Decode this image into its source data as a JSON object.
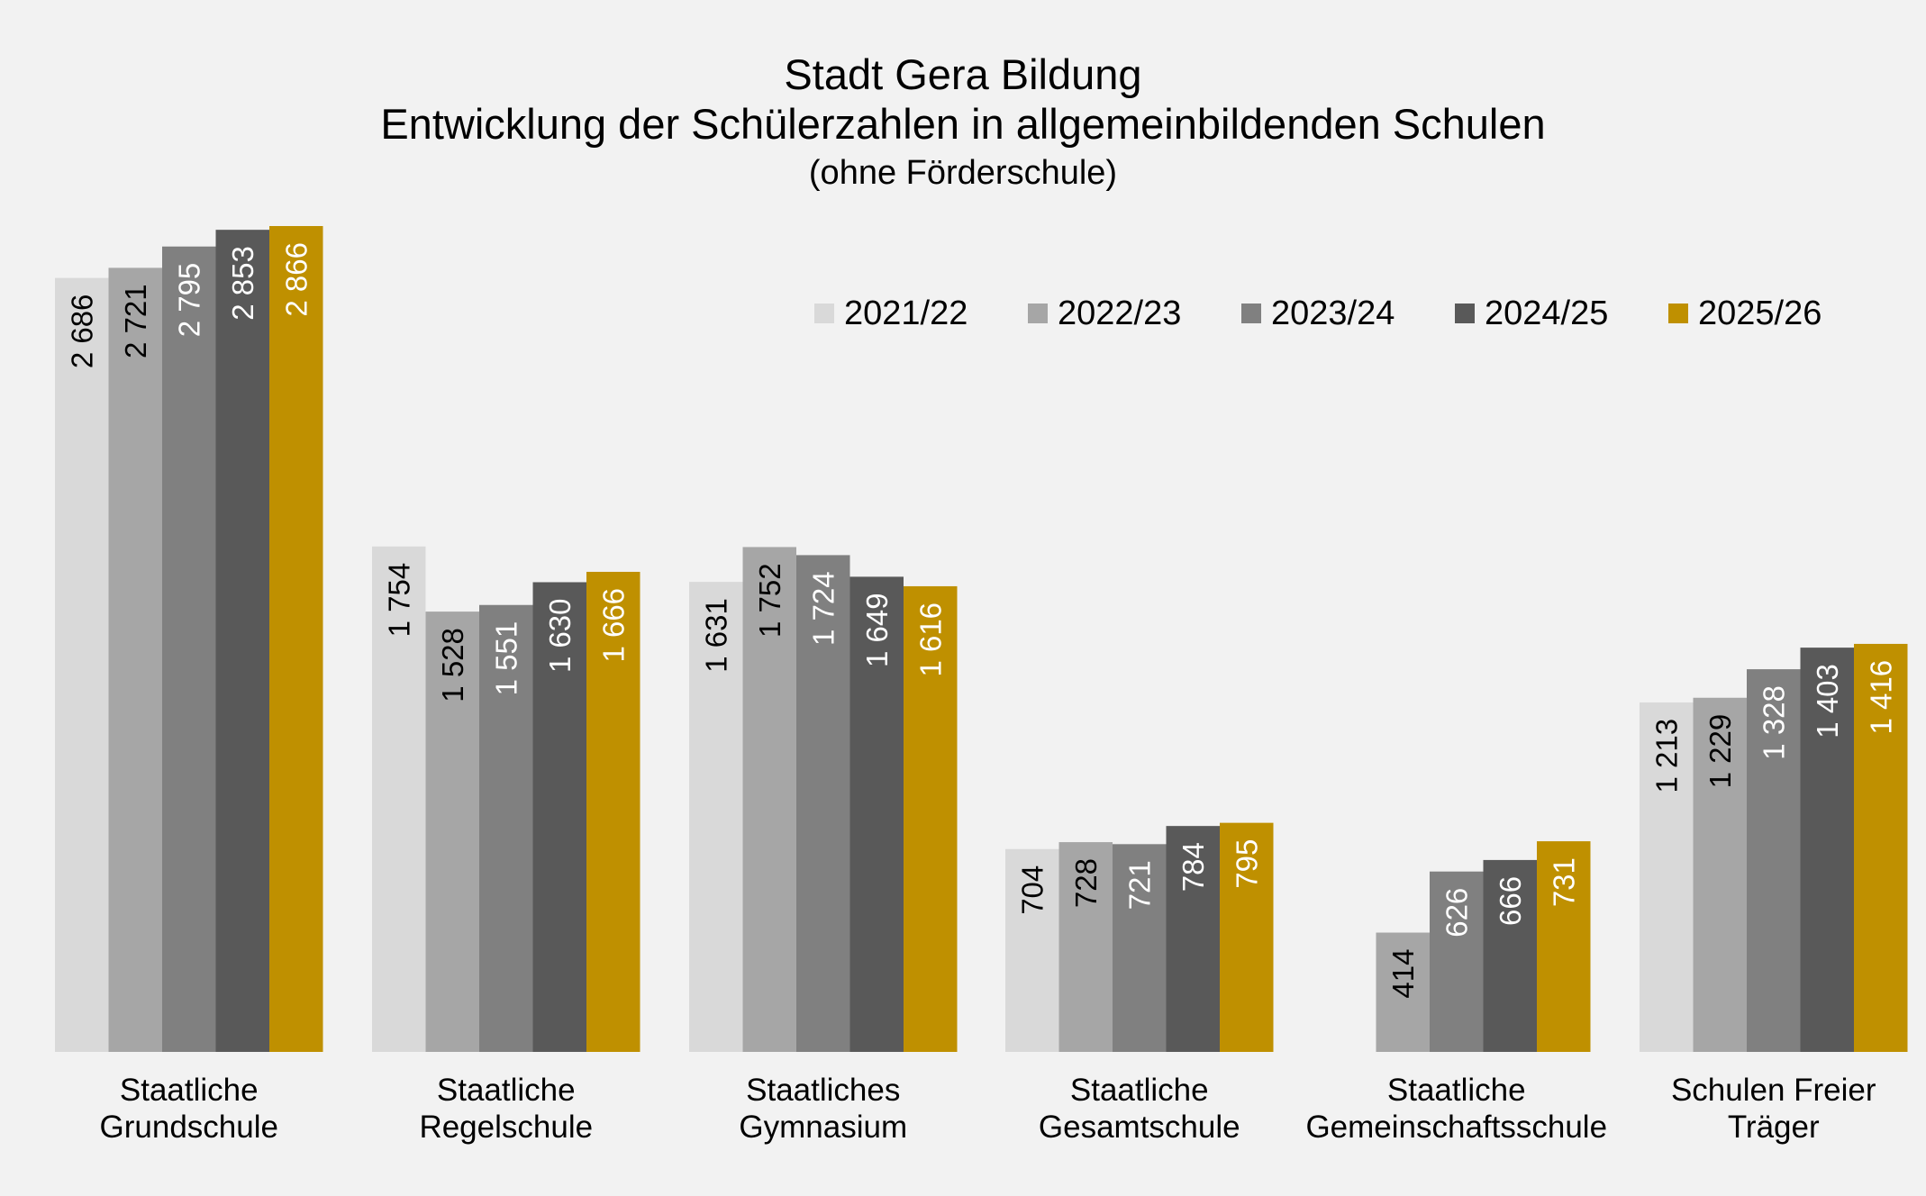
{
  "chart_data": {
    "type": "bar",
    "title": "Stadt Gera Bildung",
    "subtitle": "Entwicklung der Schülerzahlen in allgemeinbildenden Schulen",
    "subtitle2": "(ohne Förderschule)",
    "xlabel": "",
    "ylabel": "",
    "ylim": [
      0,
      2866
    ],
    "grid": false,
    "legend_position": "top-right",
    "categories": [
      [
        "Staatliche",
        "Grundschule"
      ],
      [
        "Staatliche",
        "Regelschule"
      ],
      [
        "Staatliches",
        "Gymnasium"
      ],
      [
        "Staatliche",
        "Gesamtschule"
      ],
      [
        "Staatliche",
        "Gemeinschaftsschule"
      ],
      [
        "Schulen Freier",
        "Träger"
      ]
    ],
    "series": [
      {
        "name": "2021/22",
        "color": "#d9d9d9",
        "label_color": "#000000",
        "values": [
          2686,
          1754,
          1631,
          704,
          null,
          1213
        ]
      },
      {
        "name": "2022/23",
        "color": "#a6a6a6",
        "label_color": "#000000",
        "values": [
          2721,
          1528,
          1752,
          728,
          414,
          1229
        ]
      },
      {
        "name": "2023/24",
        "color": "#808080",
        "label_color": "#ffffff",
        "values": [
          2795,
          1551,
          1724,
          721,
          626,
          1328
        ]
      },
      {
        "name": "2024/25",
        "color": "#595959",
        "label_color": "#ffffff",
        "values": [
          2853,
          1630,
          1649,
          784,
          666,
          1403
        ]
      },
      {
        "name": "2025/26",
        "color": "#bf9000",
        "label_color": "#ffffff",
        "values": [
          2866,
          1666,
          1616,
          795,
          731,
          1416
        ]
      }
    ],
    "value_labels": [
      [
        "2 686",
        "1 754",
        "1 631",
        "704",
        "",
        "1 213"
      ],
      [
        "2 721",
        "1 528",
        "1 752",
        "728",
        "414",
        "1 229"
      ],
      [
        "2 795",
        "1 551",
        "1 724",
        "721",
        "626",
        "1 328"
      ],
      [
        "2 853",
        "1 630",
        "1 649",
        "784",
        "666",
        "1 403"
      ],
      [
        "2 866",
        "1 666",
        "1 616",
        "795",
        "731",
        "1 416"
      ]
    ]
  }
}
